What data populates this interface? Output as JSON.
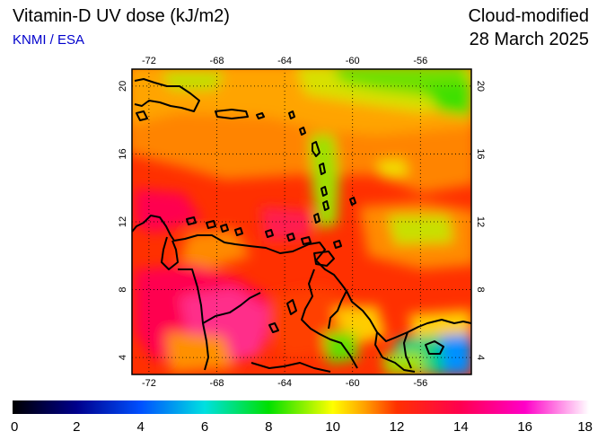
{
  "header": {
    "title": "Vitamin-D UV dose (kJ/m2)",
    "organization": "KNMI / ESA",
    "mode": "Cloud-modified",
    "date": "28 March 2025"
  },
  "map": {
    "lon_range": [
      -73,
      -53
    ],
    "lat_range": [
      3,
      21
    ],
    "lon_ticks": [
      -72,
      -68,
      -64,
      -60,
      -56
    ],
    "lat_ticks": [
      4,
      8,
      12,
      16,
      20
    ],
    "lon_labels": [
      "-72",
      "-68",
      "-64",
      "-60",
      "-56"
    ],
    "lat_labels": [
      "4",
      "8",
      "12",
      "16",
      "20"
    ],
    "grid": "dotted"
  },
  "colorbar": {
    "min": 0,
    "max": 18,
    "tick_values": [
      0,
      2,
      4,
      6,
      8,
      10,
      12,
      14,
      16,
      18
    ],
    "tick_labels": [
      "0",
      "2",
      "4",
      "6",
      "8",
      "10",
      "12",
      "14",
      "16",
      "18"
    ],
    "stops": [
      {
        "value": 0,
        "color": "#000000"
      },
      {
        "value": 2,
        "color": "#00008c"
      },
      {
        "value": 4,
        "color": "#0050ff"
      },
      {
        "value": 6,
        "color": "#00e0e0"
      },
      {
        "value": 8,
        "color": "#00e000"
      },
      {
        "value": 10,
        "color": "#ffff00"
      },
      {
        "value": 11,
        "color": "#ffa000"
      },
      {
        "value": 12,
        "color": "#ff3000"
      },
      {
        "value": 14,
        "color": "#ff0050"
      },
      {
        "value": 16,
        "color": "#ff00c8"
      },
      {
        "value": 18,
        "color": "#ffffff"
      }
    ]
  }
}
